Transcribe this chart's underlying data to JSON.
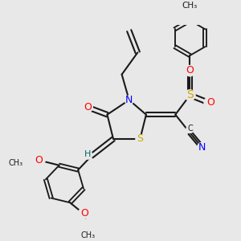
{
  "bg_color": "#e8e8e8",
  "bond_color": "#1a1a1a",
  "bond_lw": 1.5,
  "atom_colors": {
    "N": "#0000ff",
    "O": "#ff0000",
    "S": "#ccaa00",
    "H": "#006666",
    "C": "#1a1a1a"
  },
  "figsize": [
    3.0,
    3.0
  ],
  "dpi": 100,
  "xlim": [
    -3.5,
    4.5
  ],
  "ylim": [
    -4.0,
    4.0
  ]
}
